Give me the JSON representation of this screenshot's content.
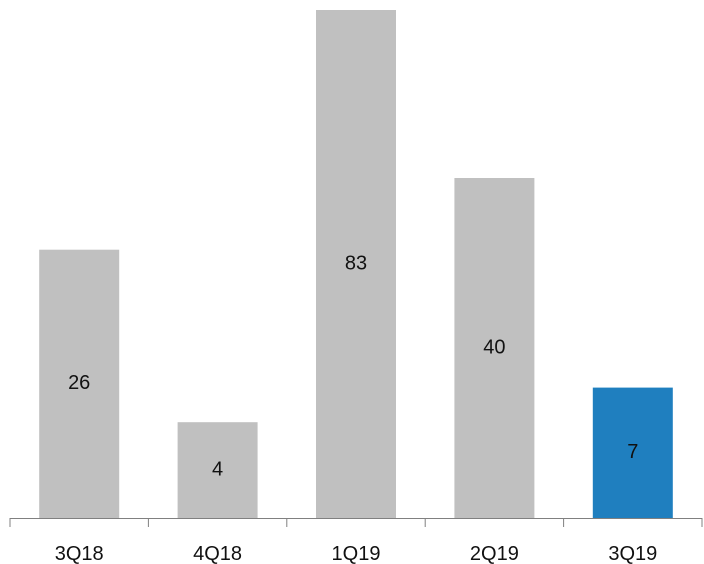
{
  "chart_data": {
    "type": "bar",
    "categories": [
      "3Q18",
      "4Q18",
      "1Q19",
      "2Q19",
      "3Q19"
    ],
    "values": [
      26,
      4,
      83,
      40,
      7
    ],
    "data_labels": [
      "26",
      "4",
      "83",
      "40",
      "7"
    ],
    "title": "",
    "xlabel": "",
    "ylabel": "",
    "bar_colors": [
      "#c0c0c0",
      "#c0c0c0",
      "#c0c0c0",
      "#c0c0c0",
      "#1f7fbf"
    ],
    "grid": false,
    "legend": "none"
  }
}
